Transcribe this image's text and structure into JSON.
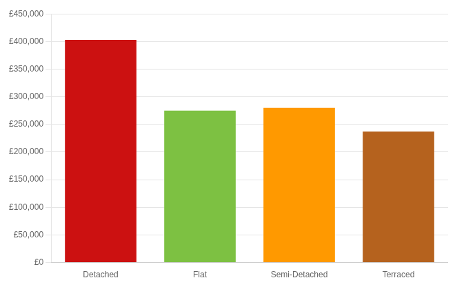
{
  "chart_data": {
    "type": "bar",
    "categories": [
      "Detached",
      "Flat",
      "Semi-Detached",
      "Terraced"
    ],
    "values": [
      403000,
      275000,
      280000,
      237000
    ],
    "colors": [
      "#cc1111",
      "#7dc142",
      "#ff9900",
      "#b5621e"
    ],
    "ylim": [
      0,
      450000
    ],
    "yticks": [
      {
        "value": 0,
        "label": "£0"
      },
      {
        "value": 50000,
        "label": "£50,000"
      },
      {
        "value": 100000,
        "label": "£100,000"
      },
      {
        "value": 150000,
        "label": "£150,000"
      },
      {
        "value": 200000,
        "label": "£200,000"
      },
      {
        "value": 250000,
        "label": "£250,000"
      },
      {
        "value": 300000,
        "label": "£300,000"
      },
      {
        "value": 350000,
        "label": "£350,000"
      },
      {
        "value": 400000,
        "label": "£400,000"
      },
      {
        "value": 450000,
        "label": "£450,000"
      }
    ],
    "grid": true
  }
}
